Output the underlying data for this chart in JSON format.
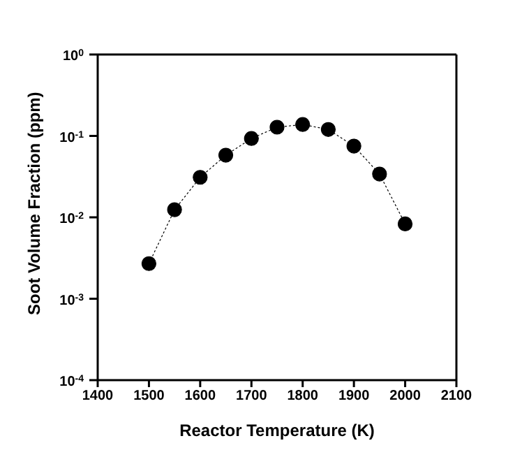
{
  "chart_data": {
    "type": "line",
    "xlabel": "Reactor Temperature (K)",
    "ylabel": "Soot Volume Fraction (ppm)",
    "x": [
      1500,
      1550,
      1600,
      1650,
      1700,
      1750,
      1800,
      1850,
      1900,
      1950,
      2000
    ],
    "series": [
      {
        "color": "#000000",
        "values": [
          0.0027,
          0.0124,
          0.031,
          0.058,
          0.093,
          0.128,
          0.138,
          0.12,
          0.075,
          0.034,
          0.0083
        ]
      }
    ],
    "log": "y",
    "marker": "circle",
    "line_style": "dotted",
    "grid": false,
    "legend": false,
    "xlim": [
      1400,
      2100
    ],
    "xticks": [
      1400,
      1500,
      1600,
      1700,
      1800,
      1900,
      2000,
      2100
    ],
    "ylim": [
      0.0001,
      1
    ],
    "yticks": [
      {
        "value": 0.0001,
        "label": "10$^{-4}$"
      },
      {
        "value": 0.001,
        "label": "10$^{-3}$"
      },
      {
        "value": 0.01,
        "label": "10$^{-2}$"
      },
      {
        "value": 0.1,
        "label": "10$^{-1}$"
      },
      {
        "value": 1,
        "label": "10$^{0}$"
      }
    ]
  }
}
